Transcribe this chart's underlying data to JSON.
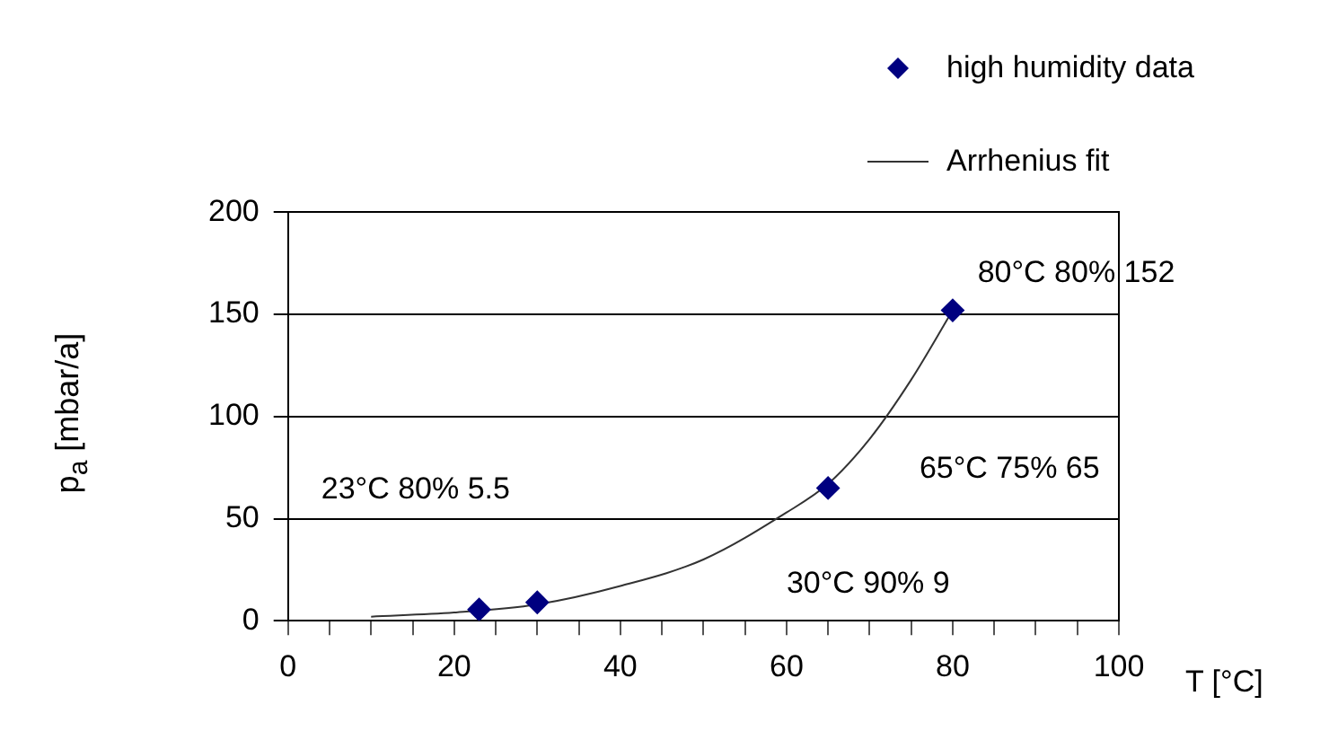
{
  "chart_data": {
    "type": "scatter",
    "xlabel": "T [°C]",
    "ylabel": "p$_{a}$  [mbar/a]",
    "series": [
      {
        "name": "high humidity data",
        "color": "#000080",
        "marker": "diamond",
        "x": [
          23,
          30,
          65,
          80
        ],
        "values": [
          5.5,
          9,
          65,
          152
        ]
      },
      {
        "name": "Arrhenius fit",
        "type": "line",
        "color": "#333333",
        "marker": "none",
        "line_style": "solid",
        "x": [
          10,
          20,
          30,
          40,
          50,
          60,
          65,
          70,
          75,
          80
        ],
        "values": [
          2,
          4,
          8,
          17,
          30,
          53,
          67,
          89,
          118,
          152
        ]
      }
    ],
    "annotations": [
      "23°C 80% 5.5",
      "30°C 90% 9",
      "65°C 75% 65",
      "80°C 80% 152"
    ],
    "xlim": [
      0,
      100
    ],
    "xticks": [
      0,
      {
        "value": 5,
        "label": null
      },
      {
        "value": 10,
        "label": null
      },
      {
        "value": 15,
        "label": null
      },
      20,
      {
        "value": 25,
        "label": null
      },
      {
        "value": 30,
        "label": null
      },
      {
        "value": 35,
        "label": null
      },
      40,
      {
        "value": 45,
        "label": null
      },
      {
        "value": 50,
        "label": null
      },
      {
        "value": 55,
        "label": null
      },
      60,
      {
        "value": 65,
        "label": null
      },
      {
        "value": 70,
        "label": null
      },
      {
        "value": 75,
        "label": null
      },
      80,
      {
        "value": 85,
        "label": null
      },
      {
        "value": 90,
        "label": null
      },
      {
        "value": 95,
        "label": null
      },
      100
    ],
    "ylim": [
      0,
      200
    ],
    "yticks": [
      0,
      50,
      100,
      150,
      200
    ],
    "grid": "y",
    "legend": "top right"
  }
}
